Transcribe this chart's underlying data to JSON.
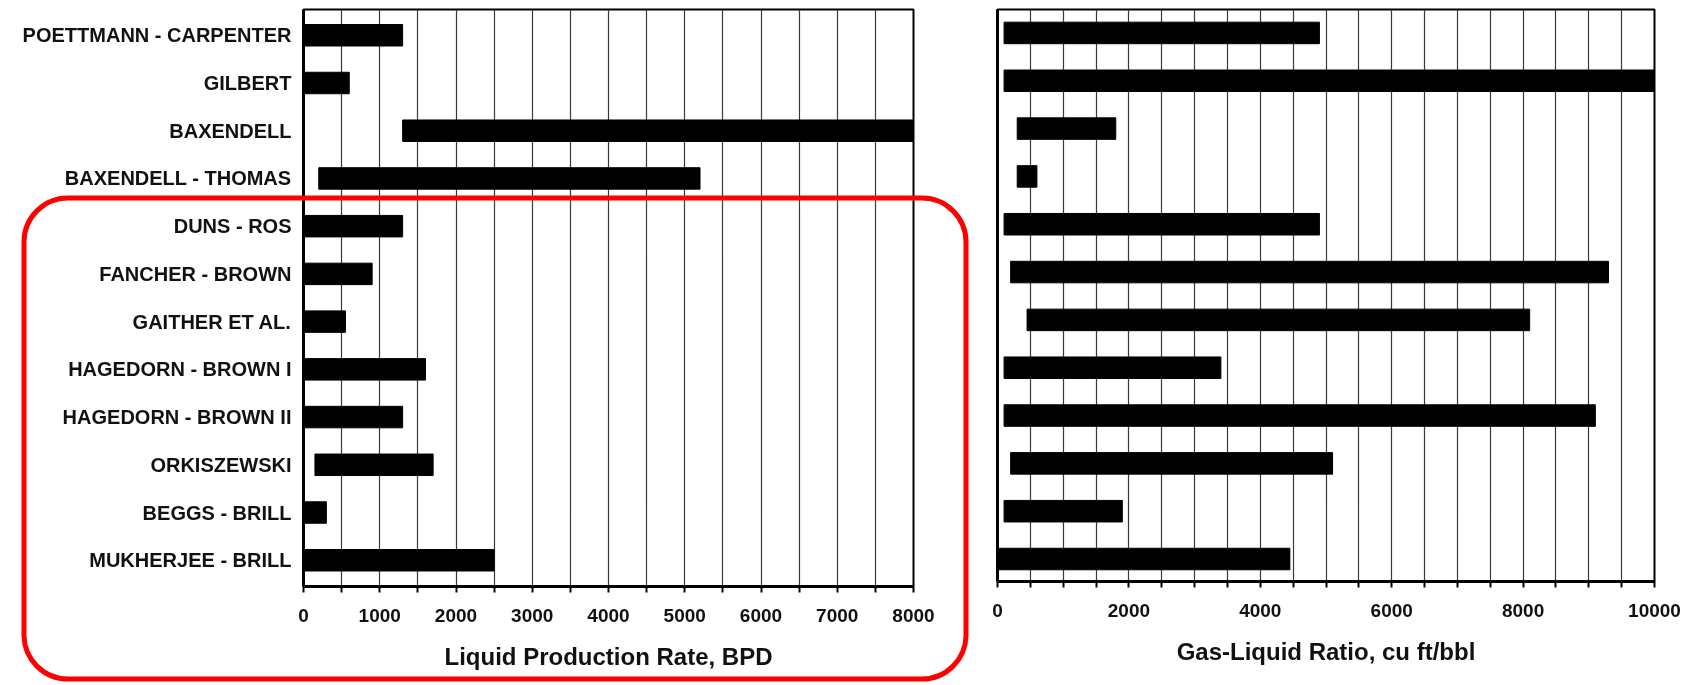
{
  "chart_data": [
    {
      "type": "bar",
      "orientation": "horizontal",
      "color": "#000000",
      "categories": [
        "POETTMANN - CARPENTER",
        "GILBERT",
        "BAXENDELL",
        "BAXENDELL - THOMAS",
        "DUNS - ROS",
        "FANCHER - BROWN",
        "GAITHER ET AL.",
        "HAGEDORN - BROWN I",
        "HAGEDORN - BROWN II",
        "ORKISZEWSKI",
        "BEGGS - BRILL",
        "MUKHERJEE - BRILL"
      ],
      "base": [
        0,
        0,
        1300,
        200,
        0,
        0,
        0,
        0,
        0,
        150,
        0,
        0
      ],
      "values": [
        1300,
        600,
        6700,
        5000,
        1300,
        900,
        550,
        1600,
        1300,
        1550,
        300,
        2500
      ],
      "xlabel": "Liquid Production Rate, BPD",
      "xlim": [
        0,
        8000
      ],
      "xticks": [
        0,
        {
          "value": 500,
          "label": null
        },
        1000,
        {
          "value": 1500,
          "label": null
        },
        2000,
        {
          "value": 2500,
          "label": null
        },
        3000,
        {
          "value": 3500,
          "label": null
        },
        4000,
        {
          "value": 4500,
          "label": null
        },
        5000,
        {
          "value": 5500,
          "label": null
        },
        6000,
        {
          "value": 6500,
          "label": null
        },
        7000,
        {
          "value": 7500,
          "label": null
        },
        8000
      ],
      "grid": "x"
    },
    {
      "type": "bar",
      "orientation": "horizontal",
      "color": "#000000",
      "categories": [
        null,
        null,
        null,
        null,
        null,
        null,
        null,
        null,
        null,
        null,
        null,
        null
      ],
      "base": [
        100,
        100,
        300,
        300,
        100,
        200,
        450,
        100,
        100,
        200,
        100,
        0
      ],
      "values": [
        4800,
        9900,
        1500,
        300,
        4800,
        9100,
        7650,
        3300,
        9000,
        4900,
        1800,
        4450
      ],
      "xlabel": "Gas-Liquid Ratio, cu ft/bbl",
      "xlim": [
        0,
        10000
      ],
      "xticks": [
        0,
        {
          "value": 500,
          "label": null
        },
        {
          "value": 1000,
          "label": null
        },
        {
          "value": 1500,
          "label": null
        },
        2000,
        {
          "value": 2500,
          "label": null
        },
        {
          "value": 3000,
          "label": null
        },
        {
          "value": 3500,
          "label": null
        },
        4000,
        {
          "value": 4500,
          "label": null
        },
        {
          "value": 5000,
          "label": null
        },
        {
          "value": 5500,
          "label": null
        },
        6000,
        {
          "value": 6500,
          "label": null
        },
        {
          "value": 7000,
          "label": null
        },
        {
          "value": 7500,
          "label": null
        },
        8000,
        {
          "value": 8500,
          "label": null
        },
        {
          "value": 9000,
          "label": null
        },
        {
          "value": 9500,
          "label": null
        },
        10000
      ],
      "grid": "x",
      "tick_labels": "x"
    }
  ]
}
